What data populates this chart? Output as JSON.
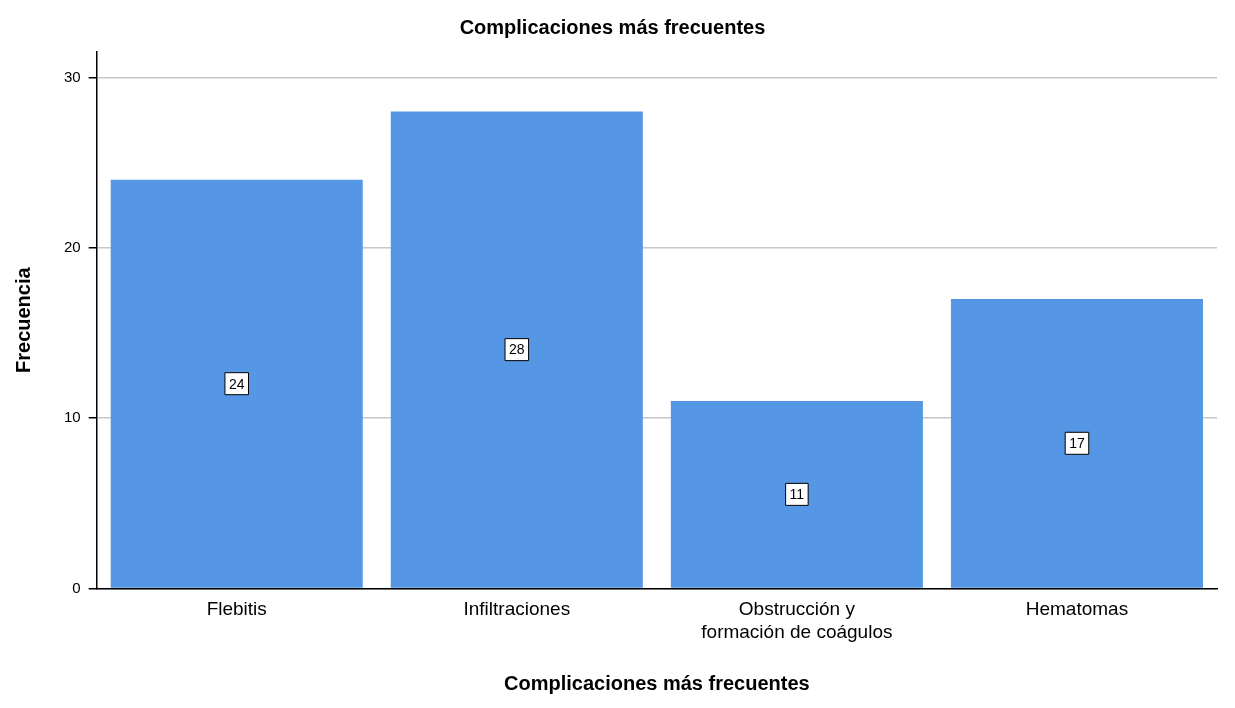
{
  "chart_data": {
    "type": "bar",
    "title": "Complicaciones más frecuentes",
    "xlabel": "Complicaciones más frecuentes",
    "ylabel": "Frecuencia",
    "categories": [
      "Flebitis",
      "Infiltraciones",
      "Obstrucción y formación de coágulos",
      "Hematomas"
    ],
    "values": [
      24,
      28,
      11,
      17
    ],
    "color": "#5597e4",
    "ylim": [
      0,
      31.5
    ],
    "yticks": [
      0,
      10,
      20,
      30
    ],
    "grid": "y",
    "data_labels": true,
    "legend": false
  }
}
